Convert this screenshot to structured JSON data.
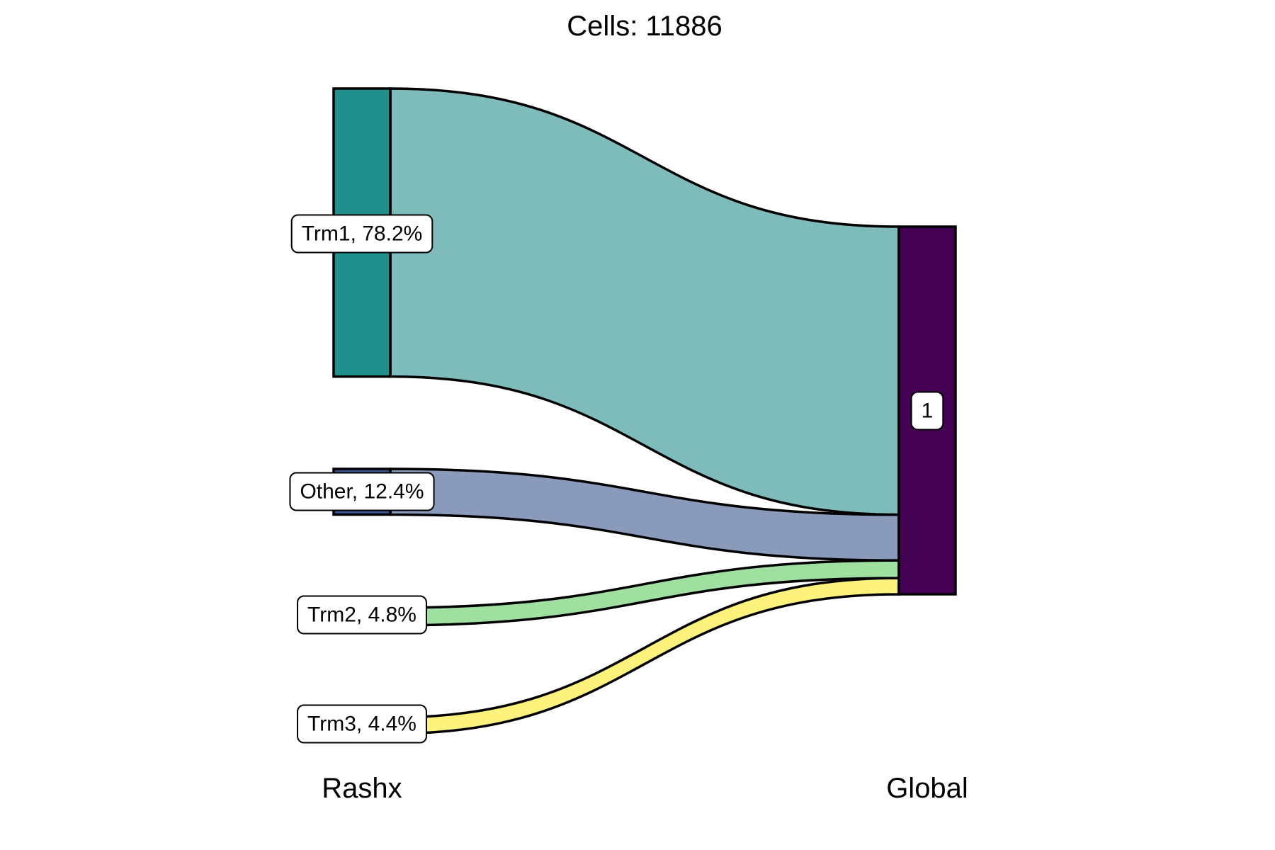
{
  "chart_data": {
    "type": "sankey",
    "title": "Cells:  11886",
    "axis_labels": [
      "Rashx",
      "Global"
    ],
    "nodes_left": [
      {
        "name": "Trm1",
        "percent": 78.2,
        "label": "Trm1, 78.2%",
        "node_color": "#21908c",
        "flow_color": "#7dbcbb"
      },
      {
        "name": "Other",
        "percent": 12.4,
        "label": "Other, 12.4%",
        "node_color": "#3b528b",
        "flow_color": "#8a9aba"
      },
      {
        "name": "Trm2",
        "percent": 4.8,
        "label": "Trm2, 4.8%",
        "node_color": "#5ec962",
        "flow_color": "#9fdfa0"
      },
      {
        "name": "Trm3",
        "percent": 4.4,
        "label": "Trm3, 4.4%",
        "node_color": "#fde725",
        "flow_color": "#fdf27b"
      }
    ],
    "node_right": {
      "name": "1",
      "label": "1",
      "color": "#440154",
      "percent": 100
    },
    "flows": [
      {
        "from": "Trm1",
        "to": "1",
        "percent": 78.2
      },
      {
        "from": "Other",
        "to": "1",
        "percent": 12.4
      },
      {
        "from": "Trm2",
        "to": "1",
        "percent": 4.8
      },
      {
        "from": "Trm3",
        "to": "1",
        "percent": 4.4
      }
    ]
  }
}
